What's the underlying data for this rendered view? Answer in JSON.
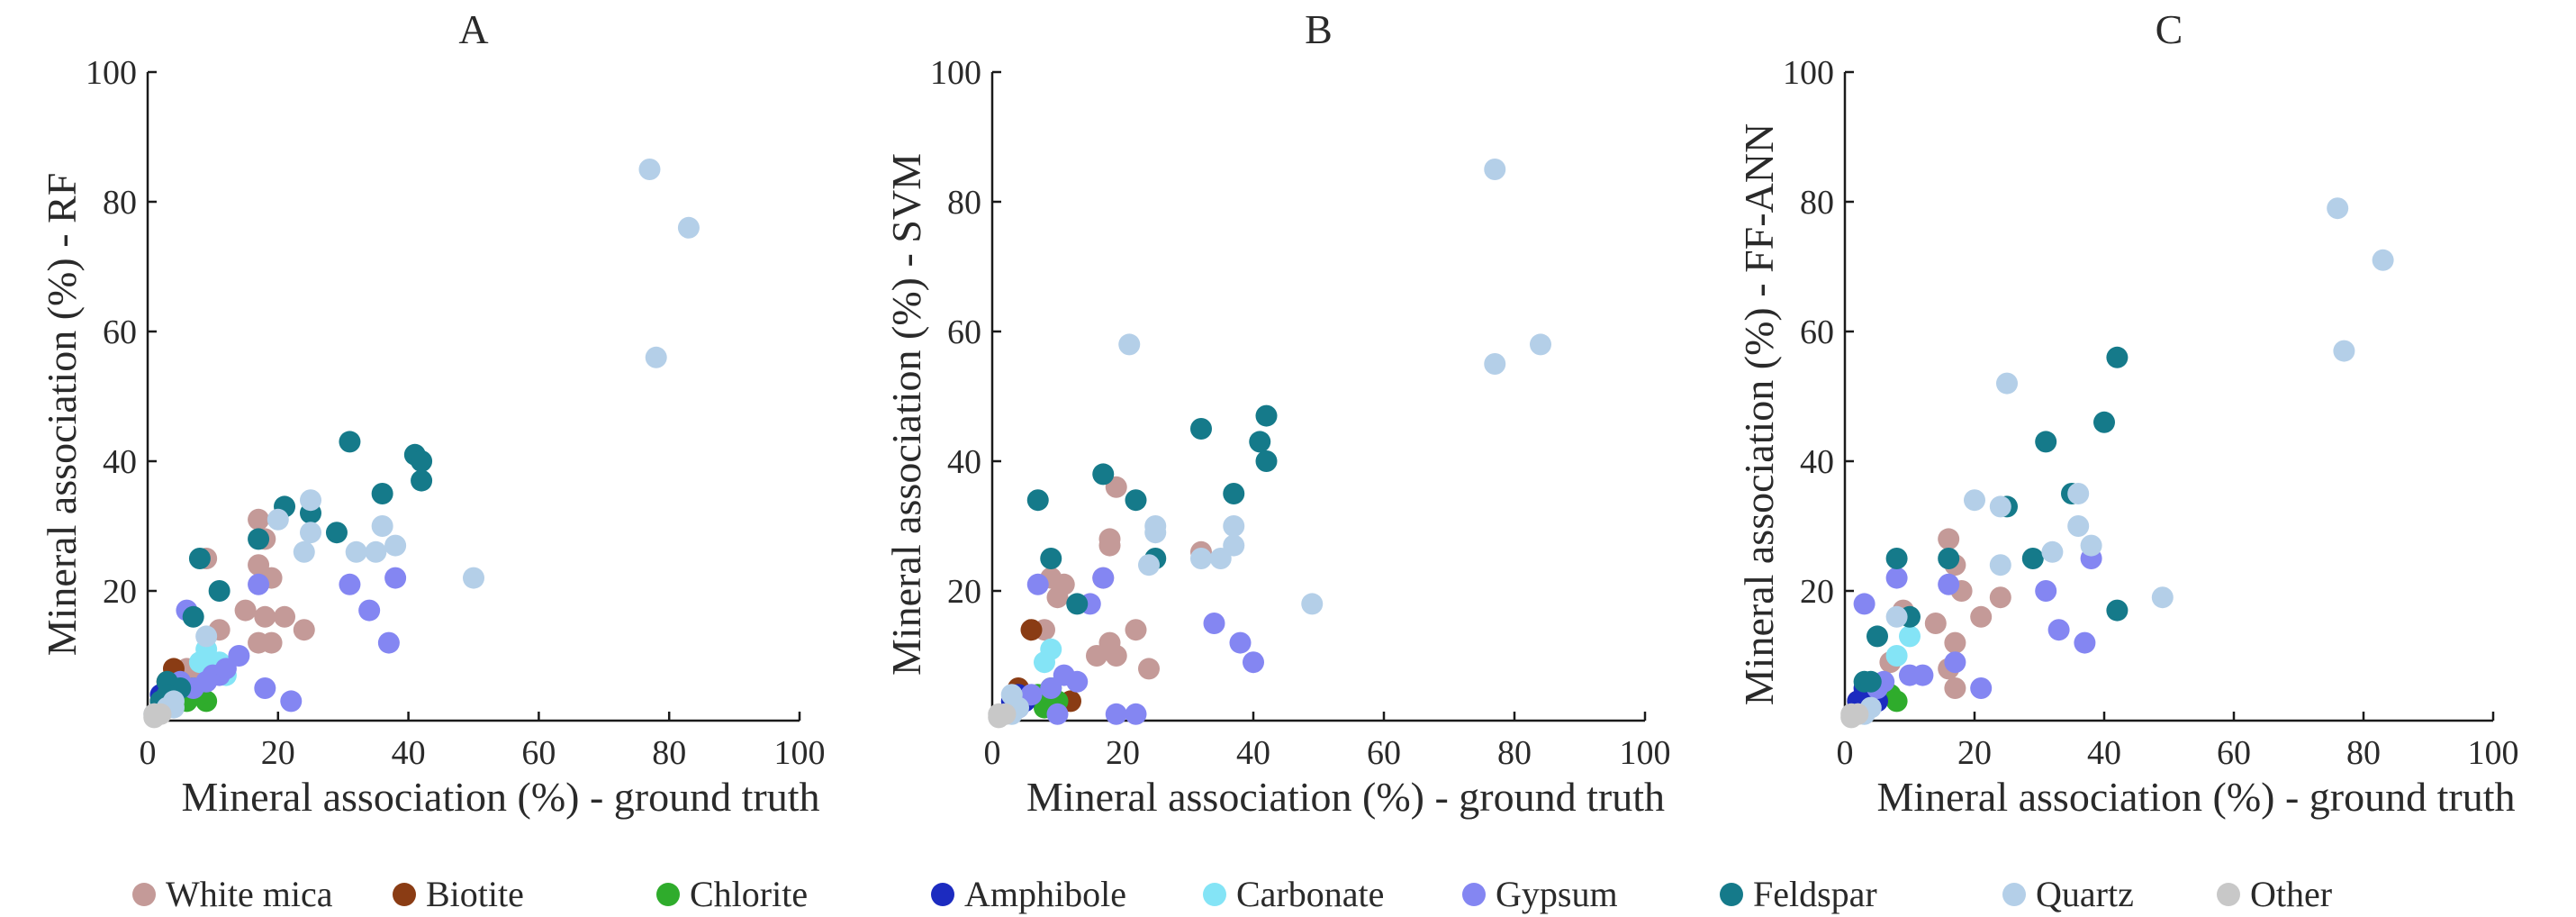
{
  "chart_data": [
    {
      "panel": "A",
      "type": "scatter",
      "title": "A",
      "xlabel": "Mineral association (%) - ground truth",
      "ylabel": "Mineral association (%) - RF",
      "xlim": [
        0,
        100
      ],
      "ylim": [
        0,
        100
      ],
      "xticks": [
        "0",
        "20",
        "40",
        "60",
        "80",
        "100"
      ],
      "yticks": [
        "20",
        "40",
        "60",
        "80",
        "100"
      ],
      "series": [
        {
          "name": "White mica",
          "points": [
            [
              9,
              25
            ],
            [
              17,
              31
            ],
            [
              18,
              28
            ],
            [
              19,
              22
            ],
            [
              17,
              24
            ],
            [
              15,
              17
            ],
            [
              18,
              16
            ],
            [
              17,
              12
            ],
            [
              21,
              16
            ],
            [
              24,
              14
            ],
            [
              19,
              12
            ],
            [
              11,
              14
            ],
            [
              6,
              8
            ],
            [
              8,
              7
            ]
          ]
        },
        {
          "name": "Biotite",
          "points": [
            [
              4,
              8
            ],
            [
              3,
              6
            ],
            [
              4,
              5
            ],
            [
              2,
              3
            ]
          ]
        },
        {
          "name": "Chlorite",
          "points": [
            [
              9,
              3
            ],
            [
              8,
              4
            ],
            [
              6,
              3
            ],
            [
              7,
              5
            ],
            [
              5,
              4
            ]
          ]
        },
        {
          "name": "Amphibole",
          "points": [
            [
              3,
              5
            ],
            [
              2,
              4
            ],
            [
              3,
              3
            ],
            [
              2,
              2
            ]
          ]
        },
        {
          "name": "Carbonate",
          "points": [
            [
              9,
              11
            ],
            [
              11,
              9
            ],
            [
              10,
              8
            ],
            [
              8,
              9
            ],
            [
              12,
              7
            ]
          ]
        },
        {
          "name": "Gypsum",
          "points": [
            [
              6,
              17
            ],
            [
              17,
              21
            ],
            [
              31,
              21
            ],
            [
              38,
              22
            ],
            [
              34,
              17
            ],
            [
              37,
              12
            ],
            [
              18,
              5
            ],
            [
              22,
              3
            ],
            [
              14,
              10
            ],
            [
              11,
              7
            ],
            [
              9,
              6
            ],
            [
              7,
              5
            ],
            [
              5,
              6
            ],
            [
              10,
              7
            ],
            [
              12,
              8
            ]
          ]
        },
        {
          "name": "Feldspar",
          "points": [
            [
              31,
              43
            ],
            [
              41,
              41
            ],
            [
              42,
              40
            ],
            [
              42,
              37
            ],
            [
              36,
              35
            ],
            [
              21,
              33
            ],
            [
              25,
              32
            ],
            [
              29,
              29
            ],
            [
              17,
              28
            ],
            [
              8,
              25
            ],
            [
              11,
              20
            ],
            [
              7,
              16
            ],
            [
              3,
              6
            ],
            [
              4,
              4
            ],
            [
              2,
              3
            ],
            [
              5,
              5
            ],
            [
              3,
              4
            ]
          ]
        },
        {
          "name": "Quartz",
          "points": [
            [
              77,
              85
            ],
            [
              83,
              76
            ],
            [
              78,
              56
            ],
            [
              50,
              22
            ],
            [
              25,
              34
            ],
            [
              25,
              29
            ],
            [
              36,
              30
            ],
            [
              38,
              27
            ],
            [
              32,
              26
            ],
            [
              35,
              26
            ],
            [
              20,
              31
            ],
            [
              24,
              26
            ],
            [
              9,
              13
            ],
            [
              4,
              3
            ],
            [
              3,
              2
            ],
            [
              1,
              1
            ],
            [
              4,
              2
            ]
          ]
        },
        {
          "name": "Other",
          "points": [
            [
              1,
              1
            ],
            [
              2,
              1
            ],
            [
              1,
              0.5
            ]
          ]
        }
      ]
    },
    {
      "panel": "B",
      "type": "scatter",
      "title": "B",
      "xlabel": "Mineral association (%) - ground truth",
      "ylabel": "Mineral association (%) - SVM",
      "xlim": [
        0,
        100
      ],
      "ylim": [
        0,
        100
      ],
      "xticks": [
        "0",
        "20",
        "40",
        "60",
        "80",
        "100"
      ],
      "yticks": [
        "20",
        "40",
        "60",
        "80",
        "100"
      ],
      "series": [
        {
          "name": "White mica",
          "points": [
            [
              19,
              36
            ],
            [
              18,
              28
            ],
            [
              18,
              27
            ],
            [
              9,
              22
            ],
            [
              11,
              21
            ],
            [
              17,
              22
            ],
            [
              8,
              14
            ],
            [
              22,
              14
            ],
            [
              18,
              12
            ],
            [
              19,
              10
            ],
            [
              16,
              10
            ],
            [
              24,
              8
            ],
            [
              10,
              19
            ],
            [
              32,
              26
            ]
          ]
        },
        {
          "name": "Biotite",
          "points": [
            [
              6,
              14
            ],
            [
              12,
              3
            ],
            [
              4,
              5
            ]
          ]
        },
        {
          "name": "Chlorite",
          "points": [
            [
              9,
              5
            ],
            [
              10,
              3
            ],
            [
              8,
              2
            ],
            [
              7,
              4
            ]
          ]
        },
        {
          "name": "Amphibole",
          "points": [
            [
              4,
              4
            ],
            [
              5,
              3
            ],
            [
              3,
              3
            ],
            [
              4,
              2
            ]
          ]
        },
        {
          "name": "Carbonate",
          "points": [
            [
              9,
              11
            ],
            [
              8,
              9
            ]
          ]
        },
        {
          "name": "Gypsum",
          "points": [
            [
              7,
              21
            ],
            [
              17,
              22
            ],
            [
              15,
              18
            ],
            [
              34,
              15
            ],
            [
              38,
              12
            ],
            [
              40,
              9
            ],
            [
              11,
              7
            ],
            [
              13,
              6
            ],
            [
              9,
              5
            ],
            [
              6,
              4
            ],
            [
              19,
              1
            ],
            [
              22,
              1
            ],
            [
              10,
              1
            ]
          ]
        },
        {
          "name": "Feldspar",
          "points": [
            [
              32,
              45
            ],
            [
              42,
              47
            ],
            [
              41,
              43
            ],
            [
              42,
              40
            ],
            [
              37,
              35
            ],
            [
              17,
              38
            ],
            [
              7,
              34
            ],
            [
              22,
              34
            ],
            [
              9,
              25
            ],
            [
              25,
              25
            ],
            [
              13,
              18
            ]
          ]
        },
        {
          "name": "Quartz",
          "points": [
            [
              77,
              85
            ],
            [
              84,
              58
            ],
            [
              77,
              55
            ],
            [
              21,
              58
            ],
            [
              49,
              18
            ],
            [
              25,
              30
            ],
            [
              25,
              29
            ],
            [
              37,
              30
            ],
            [
              37,
              27
            ],
            [
              35,
              25
            ],
            [
              24,
              24
            ],
            [
              32,
              25
            ],
            [
              3,
              4
            ],
            [
              4,
              2
            ],
            [
              3,
              1
            ],
            [
              2,
              1
            ]
          ]
        },
        {
          "name": "Other",
          "points": [
            [
              1,
              1
            ],
            [
              2,
              1
            ],
            [
              1,
              0.5
            ]
          ]
        }
      ]
    },
    {
      "panel": "C",
      "type": "scatter",
      "title": "C",
      "xlabel": "Mineral association (%) - ground truth",
      "ylabel": "Mineral association (%) - FF-ANN",
      "xlim": [
        0,
        100
      ],
      "ylim": [
        0,
        100
      ],
      "xticks": [
        "0",
        "20",
        "40",
        "60",
        "80",
        "100"
      ],
      "yticks": [
        "20",
        "40",
        "60",
        "80",
        "100"
      ],
      "series": [
        {
          "name": "White mica",
          "points": [
            [
              16,
              28
            ],
            [
              17,
              24
            ],
            [
              18,
              20
            ],
            [
              21,
              16
            ],
            [
              24,
              19
            ],
            [
              14,
              15
            ],
            [
              17,
              12
            ],
            [
              16,
              8
            ],
            [
              17,
              5
            ],
            [
              9,
              17
            ],
            [
              7,
              9
            ]
          ]
        },
        {
          "name": "Biotite",
          "points": [
            [
              4,
              5
            ],
            [
              3,
              4
            ],
            [
              2,
              3
            ]
          ]
        },
        {
          "name": "Chlorite",
          "points": [
            [
              8,
              3
            ],
            [
              7,
              4
            ],
            [
              6,
              5
            ]
          ]
        },
        {
          "name": "Amphibole",
          "points": [
            [
              3,
              5
            ],
            [
              4,
              4
            ],
            [
              2,
              3
            ],
            [
              5,
              3
            ]
          ]
        },
        {
          "name": "Carbonate",
          "points": [
            [
              10,
              13
            ],
            [
              8,
              10
            ]
          ]
        },
        {
          "name": "Gypsum",
          "points": [
            [
              3,
              18
            ],
            [
              8,
              22
            ],
            [
              16,
              21
            ],
            [
              31,
              20
            ],
            [
              38,
              25
            ],
            [
              33,
              14
            ],
            [
              37,
              12
            ],
            [
              21,
              5
            ],
            [
              17,
              9
            ],
            [
              12,
              7
            ],
            [
              10,
              7
            ],
            [
              6,
              6
            ],
            [
              5,
              5
            ]
          ]
        },
        {
          "name": "Feldspar",
          "points": [
            [
              42,
              56
            ],
            [
              31,
              43
            ],
            [
              40,
              46
            ],
            [
              25,
              33
            ],
            [
              16,
              25
            ],
            [
              8,
              25
            ],
            [
              10,
              16
            ],
            [
              5,
              13
            ],
            [
              3,
              6
            ],
            [
              4,
              6
            ],
            [
              29,
              25
            ],
            [
              35,
              35
            ],
            [
              42,
              17
            ]
          ]
        },
        {
          "name": "Quartz",
          "points": [
            [
              76,
              79
            ],
            [
              83,
              71
            ],
            [
              77,
              57
            ],
            [
              25,
              52
            ],
            [
              20,
              34
            ],
            [
              24,
              33
            ],
            [
              36,
              35
            ],
            [
              36,
              30
            ],
            [
              38,
              27
            ],
            [
              32,
              26
            ],
            [
              49,
              19
            ],
            [
              24,
              24
            ],
            [
              8,
              16
            ],
            [
              4,
              2
            ],
            [
              3,
              1
            ],
            [
              2,
              1
            ]
          ]
        },
        {
          "name": "Other",
          "points": [
            [
              1,
              1
            ],
            [
              2,
              1
            ],
            [
              1,
              0.5
            ]
          ]
        }
      ]
    }
  ],
  "legend": [
    {
      "name": "White mica",
      "color": "#c49a98"
    },
    {
      "name": "Biotite",
      "color": "#8a3c14"
    },
    {
      "name": "Chlorite",
      "color": "#2fac2c"
    },
    {
      "name": "Amphibole",
      "color": "#1c2bc0"
    },
    {
      "name": "Carbonate",
      "color": "#84e4f6"
    },
    {
      "name": "Gypsum",
      "color": "#8486f2"
    },
    {
      "name": "Feldspar",
      "color": "#157a8a"
    },
    {
      "name": "Quartz",
      "color": "#b4cfe8"
    },
    {
      "name": "Other",
      "color": "#c8c8c8"
    }
  ]
}
